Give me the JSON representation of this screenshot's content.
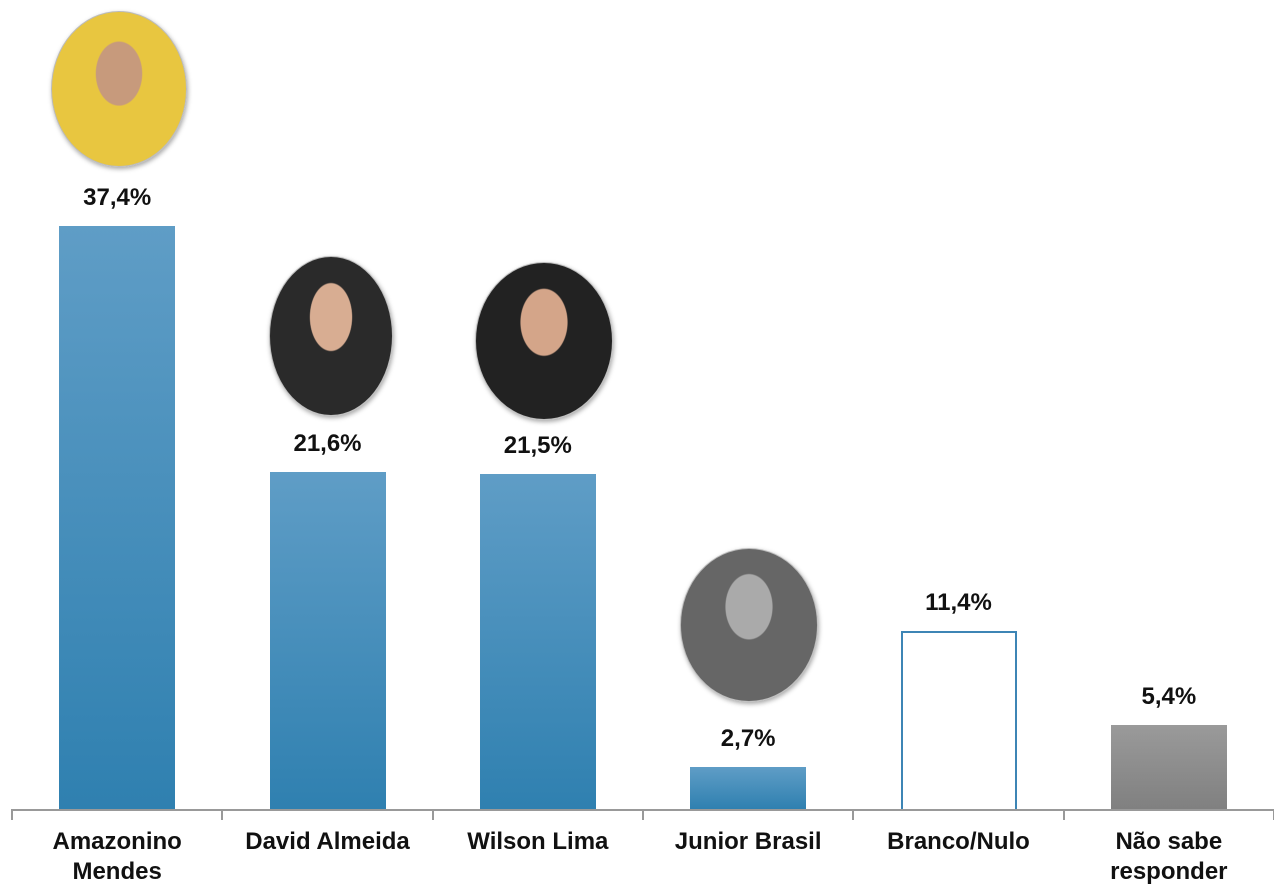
{
  "chart_data": {
    "type": "bar",
    "categories": [
      "Amazonino Mendes",
      "David Almeida",
      "Wilson Lima",
      "Junior Brasil",
      "Branco/Nulo",
      "Não sabe responder"
    ],
    "values": [
      37.4,
      21.6,
      21.5,
      2.7,
      11.4,
      5.4
    ],
    "value_labels": [
      "37,4%",
      "21,6%",
      "21,5%",
      "2,7%",
      "11,4%",
      "5,4%"
    ],
    "colors": [
      "#3f8bbb",
      "#3f8bbb",
      "#3f8bbb",
      "#3f8bbb",
      "#ffffff",
      "#8c8c8c"
    ],
    "grid": false
  }
}
